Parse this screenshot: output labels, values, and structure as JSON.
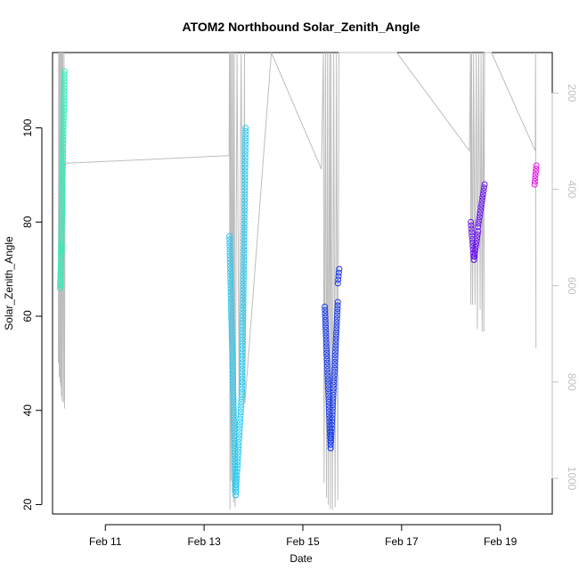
{
  "chart_data": {
    "type": "scatter",
    "title": "ATOM2 Northbound Solar_Zenith_Angle",
    "xlabel": "Date",
    "ylabel": "Solar_Zenith_Angle",
    "x_domain": [
      "2016-02-09T22:20",
      "2016-02-20T01:15"
    ],
    "y_range": [
      18,
      116
    ],
    "y_ticks": [
      20,
      40,
      60,
      80,
      100
    ],
    "x_ticks": [
      {
        "date": "2016-02-11",
        "label": "Feb 11"
      },
      {
        "date": "2016-02-13",
        "label": "Feb 13"
      },
      {
        "date": "2016-02-15",
        "label": "Feb 15"
      },
      {
        "date": "2016-02-17",
        "label": "Feb 17"
      },
      {
        "date": "2016-02-19",
        "label": "Feb 19"
      }
    ],
    "right_axis": {
      "range_top_to_bottom": [
        116,
        1074
      ],
      "ticks": [
        200,
        400,
        600,
        800,
        1000
      ],
      "color": "#c0c0c0"
    },
    "grid": false,
    "series": [
      {
        "color": "#22f0b8",
        "segments": [
          {
            "start": "2016-02-10T02:00",
            "end": "2016-02-10T02:45",
            "y_start": 66,
            "y_end": 75
          },
          {
            "start": "2016-02-10T02:30",
            "end": "2016-02-10T04:05",
            "y_start": 73,
            "y_end": 112
          }
        ]
      },
      {
        "color": "#28c9f2",
        "segments": [
          {
            "start": "2016-02-13T12:20",
            "end": "2016-02-13T15:20",
            "y_start": 77,
            "y_end": 22
          },
          {
            "start": "2016-02-13T15:20",
            "end": "2016-02-13T18:40",
            "y_start": 22,
            "y_end": 46
          },
          {
            "start": "2016-02-13T18:30",
            "end": "2016-02-13T20:10",
            "y_start": 46,
            "y_end": 100
          }
        ]
      },
      {
        "color": "#1a3cf0",
        "segments": [
          {
            "start": "2016-02-15T10:40",
            "end": "2016-02-15T13:30",
            "y_start": 62,
            "y_end": 32
          },
          {
            "start": "2016-02-15T13:30",
            "end": "2016-02-15T17:00",
            "y_start": 32,
            "y_end": 63
          },
          {
            "start": "2016-02-15T17:00",
            "end": "2016-02-15T17:40",
            "y_start": 67,
            "y_end": 70
          }
        ]
      },
      {
        "color": "#6a14ee",
        "segments": [
          {
            "start": "2016-02-18T09:40",
            "end": "2016-02-18T11:10",
            "y_start": 80,
            "y_end": 72
          },
          {
            "start": "2016-02-18T11:10",
            "end": "2016-02-18T13:10",
            "y_start": 72,
            "y_end": 78
          },
          {
            "start": "2016-02-18T13:10",
            "end": "2016-02-18T16:20",
            "y_start": 79,
            "y_end": 88
          }
        ]
      },
      {
        "color": "#e614e6",
        "segments": [
          {
            "start": "2016-02-19T16:40",
            "end": "2016-02-19T17:30",
            "y_start": 88,
            "y_end": 92
          }
        ]
      }
    ],
    "pressure_trace": {
      "color": "#bdbdbd",
      "points": [
        [
          "2016-02-10T01:10",
          760
        ],
        [
          "2016-02-10T01:20",
          116
        ],
        [
          "2016-02-10T01:35",
          790
        ],
        [
          "2016-02-10T01:45",
          116
        ],
        [
          "2016-02-10T02:00",
          800
        ],
        [
          "2016-02-10T02:10",
          116
        ],
        [
          "2016-02-10T02:20",
          810
        ],
        [
          "2016-02-10T02:30",
          116
        ],
        [
          "2016-02-10T02:40",
          830
        ],
        [
          "2016-02-10T02:50",
          116
        ],
        [
          "2016-02-10T03:00",
          840
        ],
        [
          "2016-02-10T03:20",
          116
        ],
        [
          "2016-02-10T03:40",
          843
        ],
        [
          "2016-02-10T03:55",
          116
        ],
        [
          "2016-02-10T04:10",
          855
        ],
        [
          "2016-02-10T04:20",
          346
        ],
        [
          "2016-02-13T12:10",
          330
        ],
        [
          "2016-02-13T12:20",
          116
        ],
        [
          "2016-02-13T12:35",
          1065
        ],
        [
          "2016-02-13T12:50",
          116
        ],
        [
          "2016-02-13T13:00",
          1005
        ],
        [
          "2016-02-13T13:20",
          116
        ],
        [
          "2016-02-13T13:40",
          1030
        ],
        [
          "2016-02-13T14:00",
          116
        ],
        [
          "2016-02-13T14:20",
          1050
        ],
        [
          "2016-02-13T14:40",
          116
        ],
        [
          "2016-02-13T15:00",
          1060
        ],
        [
          "2016-02-13T16:00",
          116
        ],
        [
          "2016-02-13T17:00",
          830
        ],
        [
          "2016-02-13T18:00",
          116
        ],
        [
          "2016-02-13T19:00",
          836
        ],
        [
          "2016-02-13T19:40",
          116
        ],
        [
          "2016-02-13T19:50",
          845
        ],
        [
          "2016-02-14T08:40",
          116
        ],
        [
          "2016-02-15T09:00",
          358
        ],
        [
          "2016-02-15T10:00",
          116
        ],
        [
          "2016-02-15T10:20",
          1010
        ],
        [
          "2016-02-15T11:00",
          116
        ],
        [
          "2016-02-15T11:30",
          1040
        ],
        [
          "2016-02-15T12:00",
          116
        ],
        [
          "2016-02-15T12:20",
          1055
        ],
        [
          "2016-02-15T13:00",
          116
        ],
        [
          "2016-02-15T13:20",
          1063
        ],
        [
          "2016-02-15T13:40",
          116
        ],
        [
          "2016-02-15T14:20",
          1066
        ],
        [
          "2016-02-15T15:00",
          116
        ],
        [
          "2016-02-15T15:40",
          1060
        ],
        [
          "2016-02-15T16:20",
          116
        ],
        [
          "2016-02-15T17:00",
          1045
        ],
        [
          "2016-02-15T17:30",
          116
        ],
        [
          "2016-02-16T21:40",
          116
        ],
        [
          "2016-02-18T09:00",
          320
        ],
        [
          "2016-02-18T09:30",
          116
        ],
        [
          "2016-02-18T09:40",
          640
        ],
        [
          "2016-02-18T10:00",
          116
        ],
        [
          "2016-02-18T10:30",
          640
        ],
        [
          "2016-02-18T11:00",
          116
        ],
        [
          "2016-02-18T11:40",
          640
        ],
        [
          "2016-02-18T12:20",
          116
        ],
        [
          "2016-02-18T12:50",
          690
        ],
        [
          "2016-02-18T13:30",
          116
        ],
        [
          "2016-02-18T14:10",
          650
        ],
        [
          "2016-02-18T14:40",
          116
        ],
        [
          "2016-02-18T15:10",
          695
        ],
        [
          "2016-02-18T15:40",
          116
        ],
        [
          "2016-02-18T16:00",
          695
        ],
        [
          "2016-02-18T16:20",
          116
        ],
        [
          "2016-02-18T19:40",
          116
        ],
        [
          "2016-02-19T17:00",
          320
        ],
        [
          "2016-02-19T17:10",
          116
        ],
        [
          "2016-02-19T17:20",
          730
        ]
      ]
    }
  }
}
